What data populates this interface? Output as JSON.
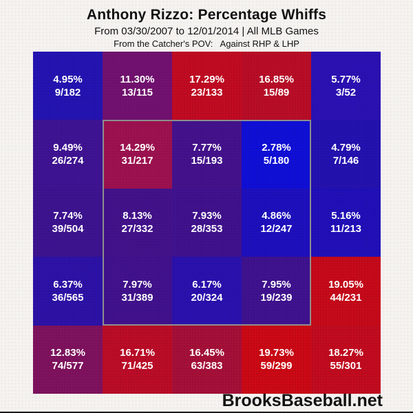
{
  "header": {
    "title": "Anthony Rizzo: Percentage Whiffs",
    "subtitle": "From 03/30/2007 to 12/01/2014 | All MLB Games",
    "pov_line": "From the Catcher's POV:   Against RHP & LHP"
  },
  "footer": {
    "brand": "BrooksBaseball.net"
  },
  "chart_data": {
    "type": "heatmap",
    "title": "Anthony Rizzo: Percentage Whiffs",
    "subtitle": "From 03/30/2007 to 12/01/2014 | All MLB Games",
    "pov": "From the Catcher's POV: Against RHP & LHP",
    "grid": {
      "rows": 5,
      "cols": 5
    },
    "value_semantics": "whiff percentage and whiffs/swings per zone; blue = low whiff rate, red = high whiff rate",
    "strike_zone": {
      "row_start": 2,
      "row_end": 4,
      "col_start": 2,
      "col_end": 4,
      "border_color": "#8e8e8e"
    },
    "cells": [
      {
        "row": 1,
        "col": 1,
        "pct": "4.95%",
        "count": "9/182",
        "value": 4.95,
        "color": "#2414b2"
      },
      {
        "row": 1,
        "col": 2,
        "pct": "11.30%",
        "count": "13/115",
        "value": 11.3,
        "color": "#721170"
      },
      {
        "row": 1,
        "col": 3,
        "pct": "17.29%",
        "count": "23/133",
        "value": 17.29,
        "color": "#c10b22"
      },
      {
        "row": 1,
        "col": 4,
        "pct": "16.85%",
        "count": "15/89",
        "value": 16.85,
        "color": "#b90d27"
      },
      {
        "row": 1,
        "col": 5,
        "pct": "5.77%",
        "count": "3/52",
        "value": 5.77,
        "color": "#2b11b3"
      },
      {
        "row": 2,
        "col": 1,
        "pct": "9.49%",
        "count": "26/274",
        "value": 9.49,
        "color": "#3f1393"
      },
      {
        "row": 2,
        "col": 2,
        "pct": "14.29%",
        "count": "31/217",
        "value": 14.29,
        "color": "#9d1150"
      },
      {
        "row": 2,
        "col": 3,
        "pct": "7.77%",
        "count": "15/193",
        "value": 7.77,
        "color": "#44128c"
      },
      {
        "row": 2,
        "col": 4,
        "pct": "2.78%",
        "count": "5/180",
        "value": 2.78,
        "color": "#100fd7"
      },
      {
        "row": 2,
        "col": 5,
        "pct": "4.79%",
        "count": "7/146",
        "value": 4.79,
        "color": "#2412b0"
      },
      {
        "row": 3,
        "col": 1,
        "pct": "7.74%",
        "count": "39/504",
        "value": 7.74,
        "color": "#3d1390"
      },
      {
        "row": 3,
        "col": 2,
        "pct": "8.13%",
        "count": "27/332",
        "value": 8.13,
        "color": "#42128b"
      },
      {
        "row": 3,
        "col": 3,
        "pct": "7.93%",
        "count": "28/353",
        "value": 7.93,
        "color": "#40128d"
      },
      {
        "row": 3,
        "col": 4,
        "pct": "4.86%",
        "count": "12/247",
        "value": 4.86,
        "color": "#1e10bd"
      },
      {
        "row": 3,
        "col": 5,
        "pct": "5.16%",
        "count": "11/213",
        "value": 5.16,
        "color": "#2110b8"
      },
      {
        "row": 4,
        "col": 1,
        "pct": "6.37%",
        "count": "36/565",
        "value": 6.37,
        "color": "#2d12a7"
      },
      {
        "row": 4,
        "col": 2,
        "pct": "7.97%",
        "count": "31/389",
        "value": 7.97,
        "color": "#41128d"
      },
      {
        "row": 4,
        "col": 3,
        "pct": "6.17%",
        "count": "20/324",
        "value": 6.17,
        "color": "#2a11ae"
      },
      {
        "row": 4,
        "col": 4,
        "pct": "7.95%",
        "count": "19/239",
        "value": 7.95,
        "color": "#3f128f"
      },
      {
        "row": 4,
        "col": 5,
        "pct": "19.05%",
        "count": "44/231",
        "value": 19.05,
        "color": "#c60a1a"
      },
      {
        "row": 5,
        "col": 1,
        "pct": "12.83%",
        "count": "74/577",
        "value": 12.83,
        "color": "#7f125e"
      },
      {
        "row": 5,
        "col": 2,
        "pct": "16.71%",
        "count": "71/425",
        "value": 16.71,
        "color": "#bb0c27"
      },
      {
        "row": 5,
        "col": 3,
        "pct": "16.45%",
        "count": "63/383",
        "value": 16.45,
        "color": "#a51038"
      },
      {
        "row": 5,
        "col": 4,
        "pct": "19.73%",
        "count": "59/299",
        "value": 19.73,
        "color": "#cb0915"
      },
      {
        "row": 5,
        "col": 5,
        "pct": "18.27%",
        "count": "55/301",
        "value": 18.27,
        "color": "#c20b1f"
      }
    ]
  }
}
